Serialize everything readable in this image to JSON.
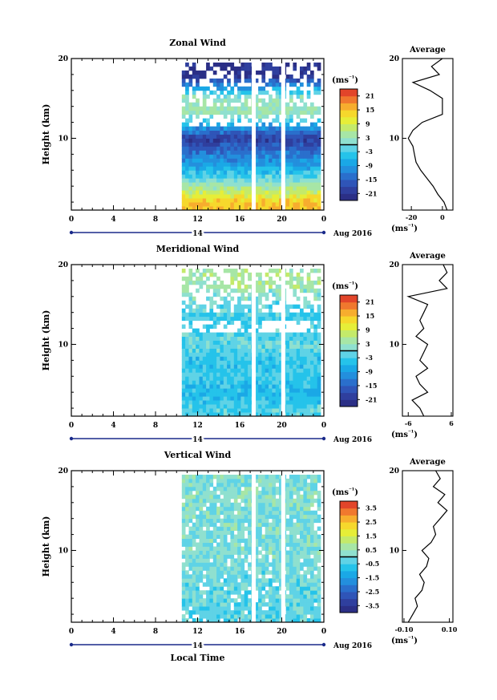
{
  "chart_data": [
    {
      "type": "heatmap",
      "title": "Zonal Wind",
      "ylabel": "Height (km)",
      "unit_label": "(ms⁻¹)",
      "xticks": [
        "0",
        "4",
        "8",
        "12",
        "16",
        "20",
        "0"
      ],
      "yticks": [
        "10",
        "20"
      ],
      "date_label": "14",
      "date_suffix": "Aug 2016",
      "ylim": [
        1,
        20
      ],
      "colorbar_ticks": [
        "21",
        "15",
        "9",
        "3",
        "-3",
        "-9",
        "-15",
        "-21"
      ],
      "colorbar_range": [
        -24,
        24
      ],
      "data_start_hour": 10.5,
      "gaps_hours": [
        17.3,
        20.1
      ],
      "profile_by_height": [
        {
          "height_km": 2,
          "value": 15
        },
        {
          "height_km": 4,
          "value": 4
        },
        {
          "height_km": 6,
          "value": -6
        },
        {
          "height_km": 8,
          "value": -12
        },
        {
          "height_km": 10,
          "value": -20
        },
        {
          "height_km": 13,
          "value": 3
        },
        {
          "height_km": 15,
          "value": 3
        },
        {
          "height_km": 18,
          "value": -22
        }
      ],
      "average": {
        "title": "Average",
        "unit_label": "(ms⁻¹)",
        "xticks": [
          "-20",
          "0"
        ],
        "yticks": [
          "10",
          "20"
        ],
        "height_km": [
          1,
          2,
          3,
          4,
          5,
          6,
          7,
          8,
          9,
          10,
          11,
          12,
          13,
          14,
          15,
          16,
          17,
          18,
          19,
          20
        ],
        "value": [
          3,
          1,
          -3,
          -6,
          -10,
          -14,
          -17,
          -18,
          -19,
          -22,
          -19,
          -13,
          0,
          0,
          0,
          -8,
          -19,
          -2,
          -7,
          0
        ]
      }
    },
    {
      "type": "heatmap",
      "title": "Meridional Wind",
      "ylabel": "Height (km)",
      "unit_label": "(ms⁻¹)",
      "xticks": [
        "0",
        "4",
        "8",
        "12",
        "16",
        "20",
        "0"
      ],
      "yticks": [
        "10",
        "20"
      ],
      "date_label": "14",
      "date_suffix": "Aug 2016",
      "ylim": [
        1,
        20
      ],
      "colorbar_ticks": [
        "21",
        "15",
        "9",
        "3",
        "-3",
        "-9",
        "-15",
        "-21"
      ],
      "colorbar_range": [
        -24,
        24
      ],
      "data_start_hour": 10.5,
      "gaps_hours": [
        17.3,
        20.1
      ],
      "profile_by_height": [
        {
          "height_km": 2,
          "value": -2
        },
        {
          "height_km": 4,
          "value": -6
        },
        {
          "height_km": 6,
          "value": -3
        },
        {
          "height_km": 8,
          "value": -4
        },
        {
          "height_km": 10,
          "value": -1
        },
        {
          "height_km": 13,
          "value": -3
        },
        {
          "height_km": 15,
          "value": -1
        },
        {
          "height_km": 18,
          "value": 5
        }
      ],
      "average": {
        "title": "Average",
        "unit_label": "(ms⁻¹)",
        "xticks": [
          "-6",
          "6"
        ],
        "yticks": [
          "10",
          "20"
        ],
        "height_km": [
          1,
          2,
          3,
          4,
          5,
          6,
          7,
          8,
          9,
          10,
          11,
          12,
          13,
          14,
          15,
          16,
          17,
          18,
          19,
          20
        ],
        "value": [
          -2,
          -3,
          -5,
          -1,
          -3,
          -4,
          -1,
          -3,
          -2,
          -1,
          -4,
          -2,
          -3,
          -2,
          -1,
          -6,
          4,
          2,
          4,
          3
        ]
      }
    },
    {
      "type": "heatmap",
      "title": "Vertical Wind",
      "ylabel": "Height (km)",
      "xlabel": "Local Time",
      "unit_label": "(ms⁻¹)",
      "xticks": [
        "0",
        "4",
        "8",
        "12",
        "16",
        "20",
        "0"
      ],
      "yticks": [
        "10",
        "20"
      ],
      "date_label": "14",
      "date_suffix": "Aug 2016",
      "ylim": [
        1,
        20
      ],
      "colorbar_ticks": [
        "3.5",
        "2.5",
        "1.5",
        "0.5",
        "-0.5",
        "-1.5",
        "-2.5",
        "-3.5"
      ],
      "colorbar_range": [
        -4,
        4
      ],
      "data_start_hour": 10.5,
      "gaps_hours": [
        17.3,
        20.1
      ],
      "profile_by_height": [
        {
          "height_km": 2,
          "value": -0.3
        },
        {
          "height_km": 5,
          "value": -0.2
        },
        {
          "height_km": 8,
          "value": 0
        },
        {
          "height_km": 11,
          "value": 0.1
        },
        {
          "height_km": 14,
          "value": 0.1
        },
        {
          "height_km": 17,
          "value": 0.2
        },
        {
          "height_km": 19,
          "value": 0.1
        }
      ],
      "average": {
        "title": "Average",
        "unit_label": "(ms⁻¹)",
        "xticks": [
          "-0.10",
          "0.10"
        ],
        "yticks": [
          "10",
          "20"
        ],
        "height_km": [
          1,
          2,
          3,
          4,
          5,
          6,
          7,
          8,
          9,
          10,
          11,
          12,
          13,
          14,
          15,
          16,
          17,
          18,
          19,
          20
        ],
        "value": [
          -0.08,
          -0.06,
          -0.04,
          -0.05,
          -0.02,
          -0.01,
          -0.03,
          0.0,
          0.01,
          -0.02,
          0.02,
          0.04,
          0.03,
          0.06,
          0.09,
          0.05,
          0.08,
          0.03,
          0.06,
          0.04
        ]
      }
    }
  ]
}
